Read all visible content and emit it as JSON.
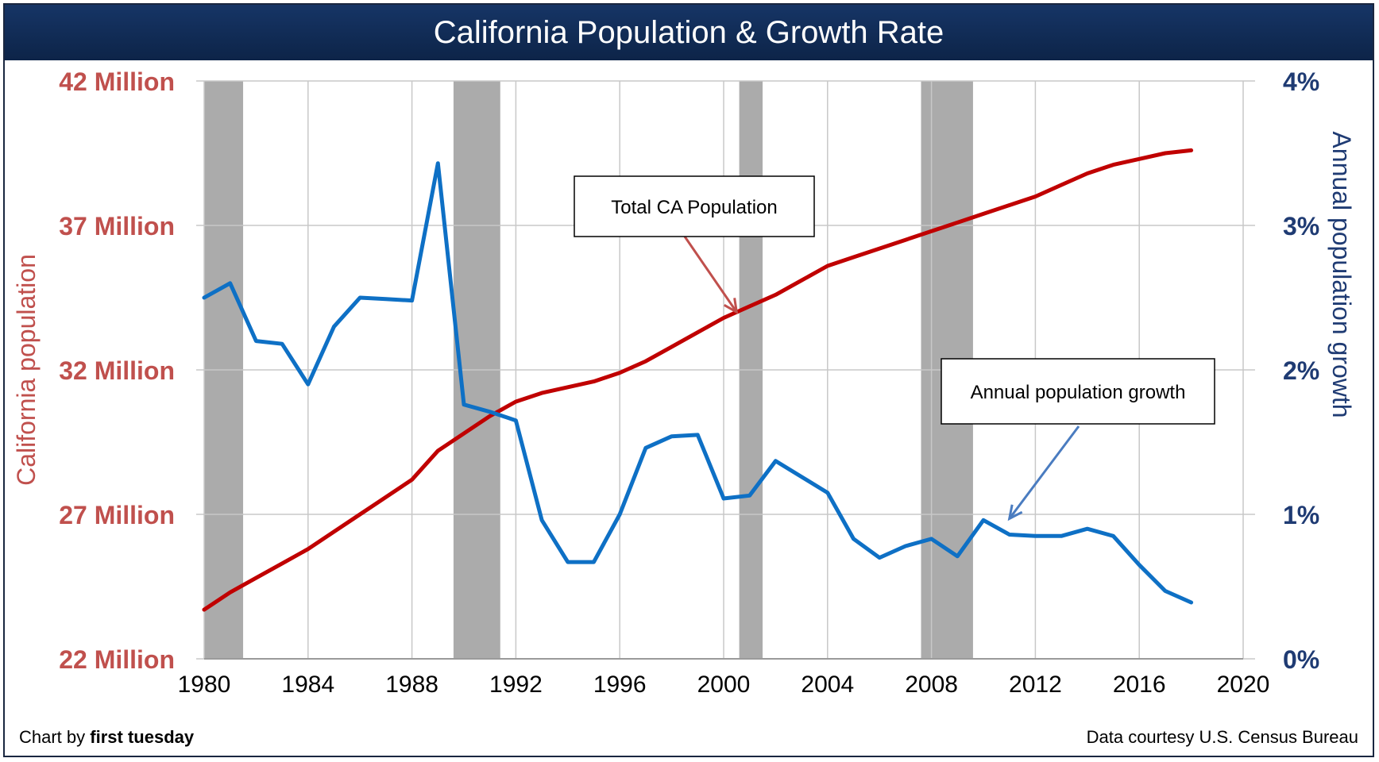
{
  "footer": {
    "chart_by_prefix": "Chart by",
    "chart_by_name": "first tuesday",
    "source": "Data courtesy U.S. Census Bureau"
  },
  "chart_data": {
    "type": "line",
    "title": "California Population & Growth Rate",
    "x_axis": {
      "min": 1980,
      "max": 2020,
      "ticks": [
        1980,
        1984,
        1988,
        1992,
        1996,
        2000,
        2004,
        2008,
        2012,
        2016,
        2020
      ]
    },
    "y_left": {
      "label": "California population",
      "min": 22,
      "max": 42,
      "ticks": [
        22,
        27,
        32,
        37,
        42
      ],
      "tick_labels": [
        "22 Million",
        "27 Million",
        "32 Million",
        "37 Million",
        "42 Million"
      ],
      "color": "#c0504d"
    },
    "y_right": {
      "label": "Annual population growth",
      "min": 0,
      "max": 4,
      "ticks": [
        0,
        1,
        2,
        3,
        4
      ],
      "tick_labels": [
        "0%",
        "1%",
        "2%",
        "3%",
        "4%"
      ],
      "color": "#1f3b73"
    },
    "grid": true,
    "recession_bands": [
      [
        1980.0,
        1981.5
      ],
      [
        1989.6,
        1991.4
      ],
      [
        2000.6,
        2001.5
      ],
      [
        2007.6,
        2009.6
      ]
    ],
    "series": [
      {
        "name": "Total CA Population",
        "axis": "left",
        "color": "#c00000",
        "x": [
          1980,
          1981,
          1982,
          1983,
          1984,
          1985,
          1986,
          1987,
          1988,
          1989,
          1990,
          1991,
          1992,
          1993,
          1994,
          1995,
          1996,
          1997,
          1998,
          1999,
          2000,
          2001,
          2002,
          2003,
          2004,
          2005,
          2006,
          2007,
          2008,
          2009,
          2010,
          2011,
          2012,
          2013,
          2014,
          2015,
          2016,
          2017,
          2018
        ],
        "values": [
          23.7,
          24.3,
          24.8,
          25.3,
          25.8,
          26.4,
          27.0,
          27.6,
          28.2,
          29.2,
          29.8,
          30.4,
          30.9,
          31.2,
          31.4,
          31.6,
          31.9,
          32.3,
          32.8,
          33.3,
          33.8,
          34.2,
          34.6,
          35.1,
          35.6,
          35.9,
          36.2,
          36.5,
          36.8,
          37.1,
          37.4,
          37.7,
          38.0,
          38.4,
          38.8,
          39.1,
          39.3,
          39.5,
          39.6
        ]
      },
      {
        "name": "Annual population growth",
        "axis": "right",
        "color": "#0e70c5",
        "x": [
          1980,
          1981,
          1982,
          1983,
          1984,
          1985,
          1986,
          1987,
          1988,
          1989,
          1990,
          1991,
          1992,
          1993,
          1994,
          1995,
          1996,
          1997,
          1998,
          1999,
          2000,
          2001,
          2002,
          2003,
          2004,
          2005,
          2006,
          2007,
          2008,
          2009,
          2010,
          2011,
          2012,
          2013,
          2014,
          2015,
          2016,
          2017,
          2018
        ],
        "values": [
          2.5,
          2.6,
          2.2,
          2.18,
          1.9,
          2.3,
          2.5,
          2.49,
          2.48,
          3.43,
          1.76,
          1.71,
          1.65,
          0.96,
          0.67,
          0.67,
          1.0,
          1.46,
          1.54,
          1.55,
          1.11,
          1.13,
          1.37,
          1.26,
          1.15,
          0.83,
          0.7,
          0.78,
          0.83,
          0.71,
          0.96,
          0.86,
          0.85,
          0.85,
          0.9,
          0.85,
          0.65,
          0.47,
          0.39
        ]
      }
    ],
    "annotations": [
      {
        "text": "Total CA Population",
        "series": 0,
        "arrow_to_x": 2000.5,
        "arrow_to_y": 34.0
      },
      {
        "text": "Annual population growth",
        "series": 1,
        "arrow_to_x": 2011,
        "arrow_to_y": 0.97
      }
    ]
  }
}
